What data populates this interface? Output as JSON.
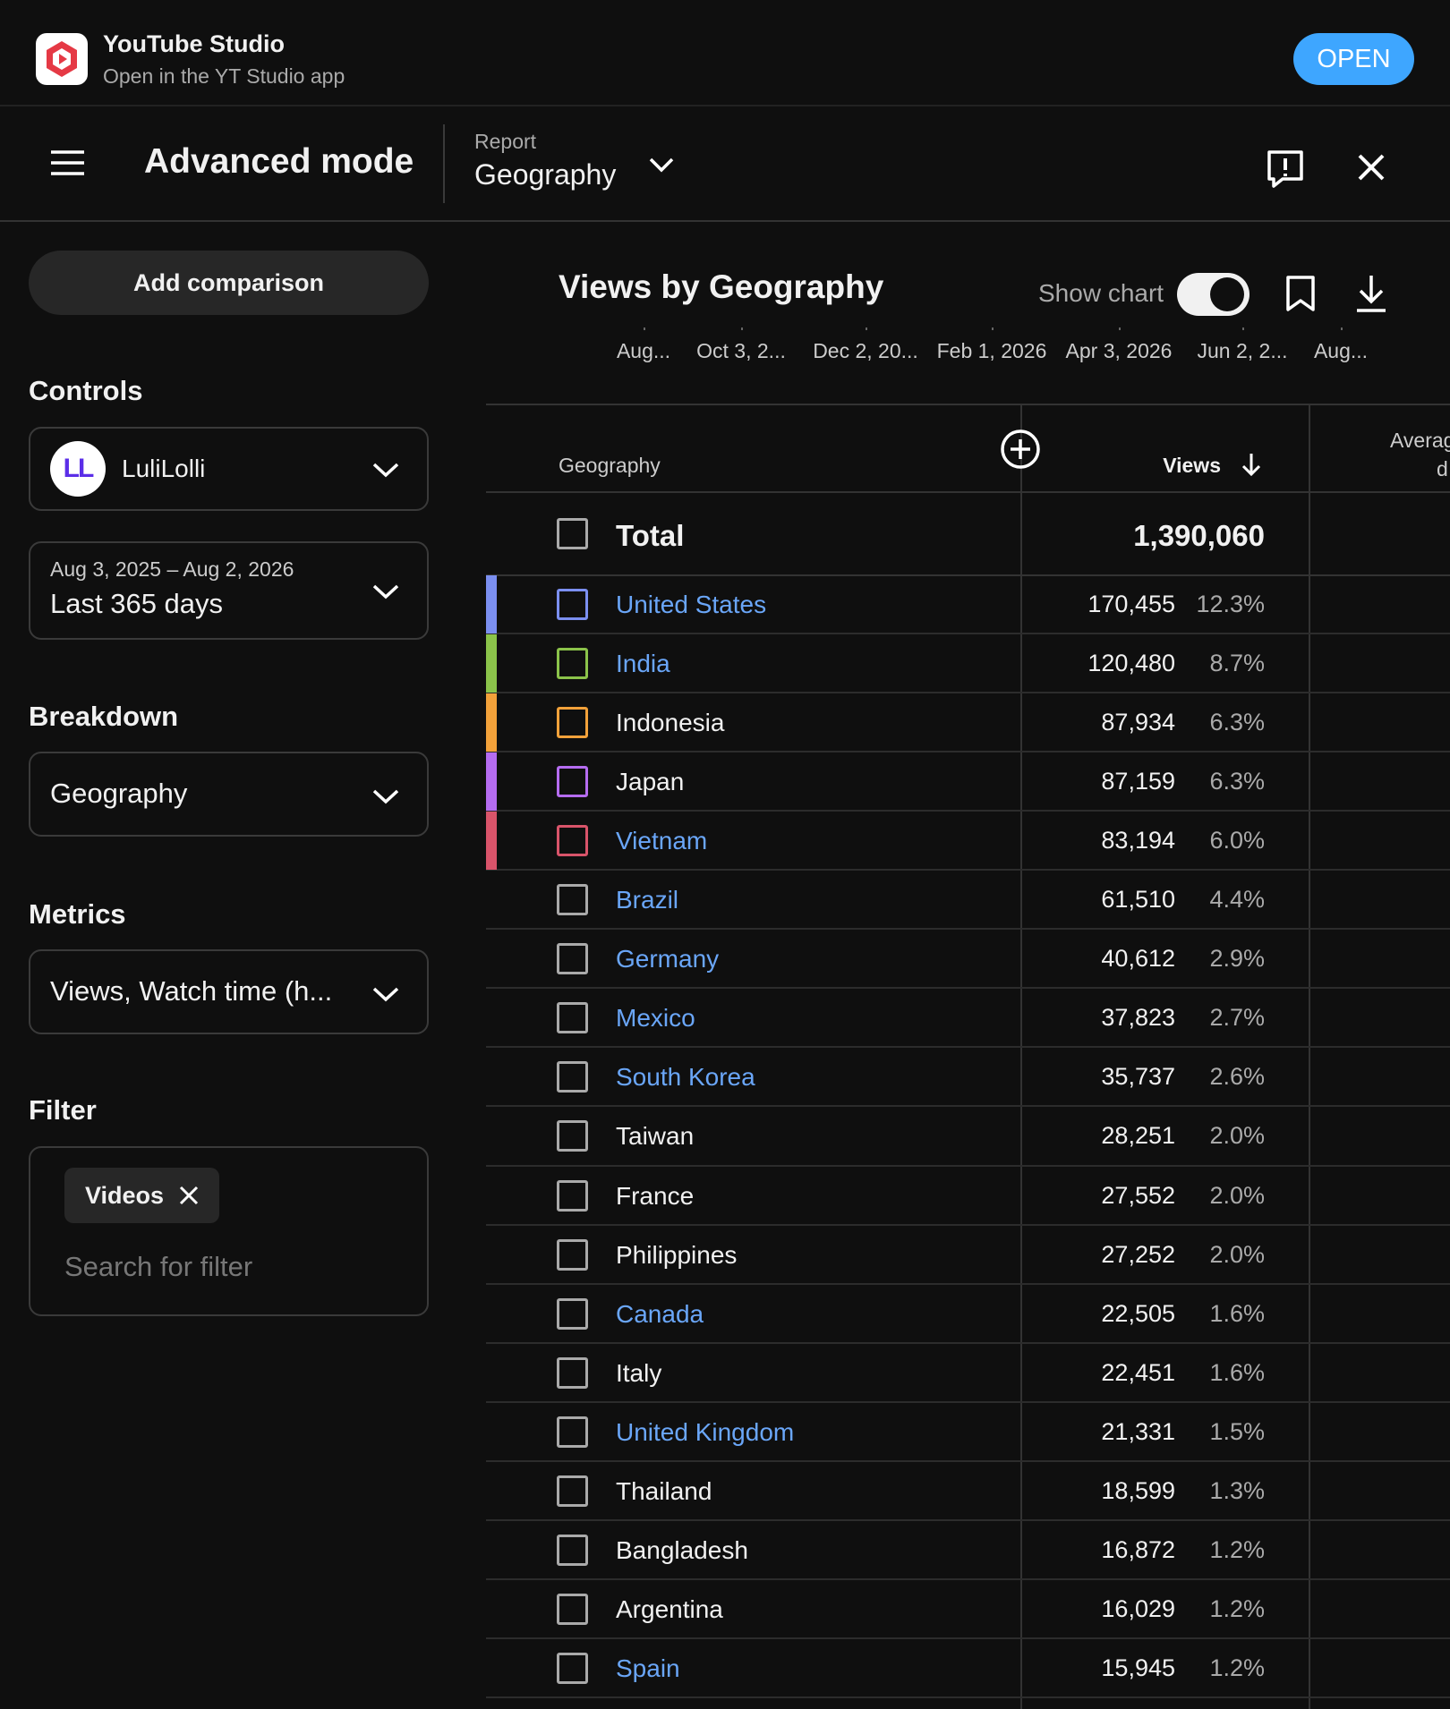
{
  "app_banner": {
    "title": "YouTube Studio",
    "subtitle": "Open in the YT Studio app",
    "button": "OPEN"
  },
  "header": {
    "title": "Advanced mode",
    "report_label": "Report",
    "report": "Geography"
  },
  "sidebar": {
    "add_comparison": "Add comparison",
    "controls_heading": "Controls",
    "channel": {
      "initials": "LL",
      "name": "LuliLolli"
    },
    "date_range": {
      "range": "Aug 3, 2025 – Aug 2, 2026",
      "label": "Last 365 days"
    },
    "breakdown_heading": "Breakdown",
    "breakdown": "Geography",
    "metrics_heading": "Metrics",
    "metrics": "Views, Watch time (h...",
    "filter_heading": "Filter",
    "filter_chip": "Videos",
    "filter_placeholder": "Search for filter"
  },
  "report": {
    "title": "Views by Geography",
    "show_chart": "Show chart",
    "timeline": [
      "Aug...",
      "Oct 3, 2...",
      "Dec 2, 20...",
      "Feb 1, 2026",
      "Apr 3, 2026",
      "Jun 2, 2...",
      "Aug..."
    ],
    "columns": {
      "geography": "Geography",
      "views": "Views",
      "third": [
        "Averag",
        "d"
      ]
    },
    "total": {
      "label": "Total",
      "views": "1,390,060"
    },
    "rows": [
      {
        "name": "United States",
        "views": "170,455",
        "percent": "12.3%",
        "link": true,
        "color": "#7b8ff0"
      },
      {
        "name": "India",
        "views": "120,480",
        "percent": "8.7%",
        "link": true,
        "color": "#8bc34a"
      },
      {
        "name": "Indonesia",
        "views": "87,934",
        "percent": "6.3%",
        "link": false,
        "color": "#f2a13a"
      },
      {
        "name": "Japan",
        "views": "87,159",
        "percent": "6.3%",
        "link": false,
        "color": "#b56cf0"
      },
      {
        "name": "Vietnam",
        "views": "83,194",
        "percent": "6.0%",
        "link": true,
        "color": "#d9546a"
      },
      {
        "name": "Brazil",
        "views": "61,510",
        "percent": "4.4%",
        "link": true
      },
      {
        "name": "Germany",
        "views": "40,612",
        "percent": "2.9%",
        "link": true
      },
      {
        "name": "Mexico",
        "views": "37,823",
        "percent": "2.7%",
        "link": true
      },
      {
        "name": "South Korea",
        "views": "35,737",
        "percent": "2.6%",
        "link": true
      },
      {
        "name": "Taiwan",
        "views": "28,251",
        "percent": "2.0%",
        "link": false
      },
      {
        "name": "France",
        "views": "27,552",
        "percent": "2.0%",
        "link": false
      },
      {
        "name": "Philippines",
        "views": "27,252",
        "percent": "2.0%",
        "link": false
      },
      {
        "name": "Canada",
        "views": "22,505",
        "percent": "1.6%",
        "link": true
      },
      {
        "name": "Italy",
        "views": "22,451",
        "percent": "1.6%",
        "link": false
      },
      {
        "name": "United Kingdom",
        "views": "21,331",
        "percent": "1.5%",
        "link": true
      },
      {
        "name": "Thailand",
        "views": "18,599",
        "percent": "1.3%",
        "link": false
      },
      {
        "name": "Bangladesh",
        "views": "16,872",
        "percent": "1.2%",
        "link": false
      },
      {
        "name": "Argentina",
        "views": "16,029",
        "percent": "1.2%",
        "link": false
      },
      {
        "name": "Spain",
        "views": "15,945",
        "percent": "1.2%",
        "link": true
      }
    ]
  }
}
